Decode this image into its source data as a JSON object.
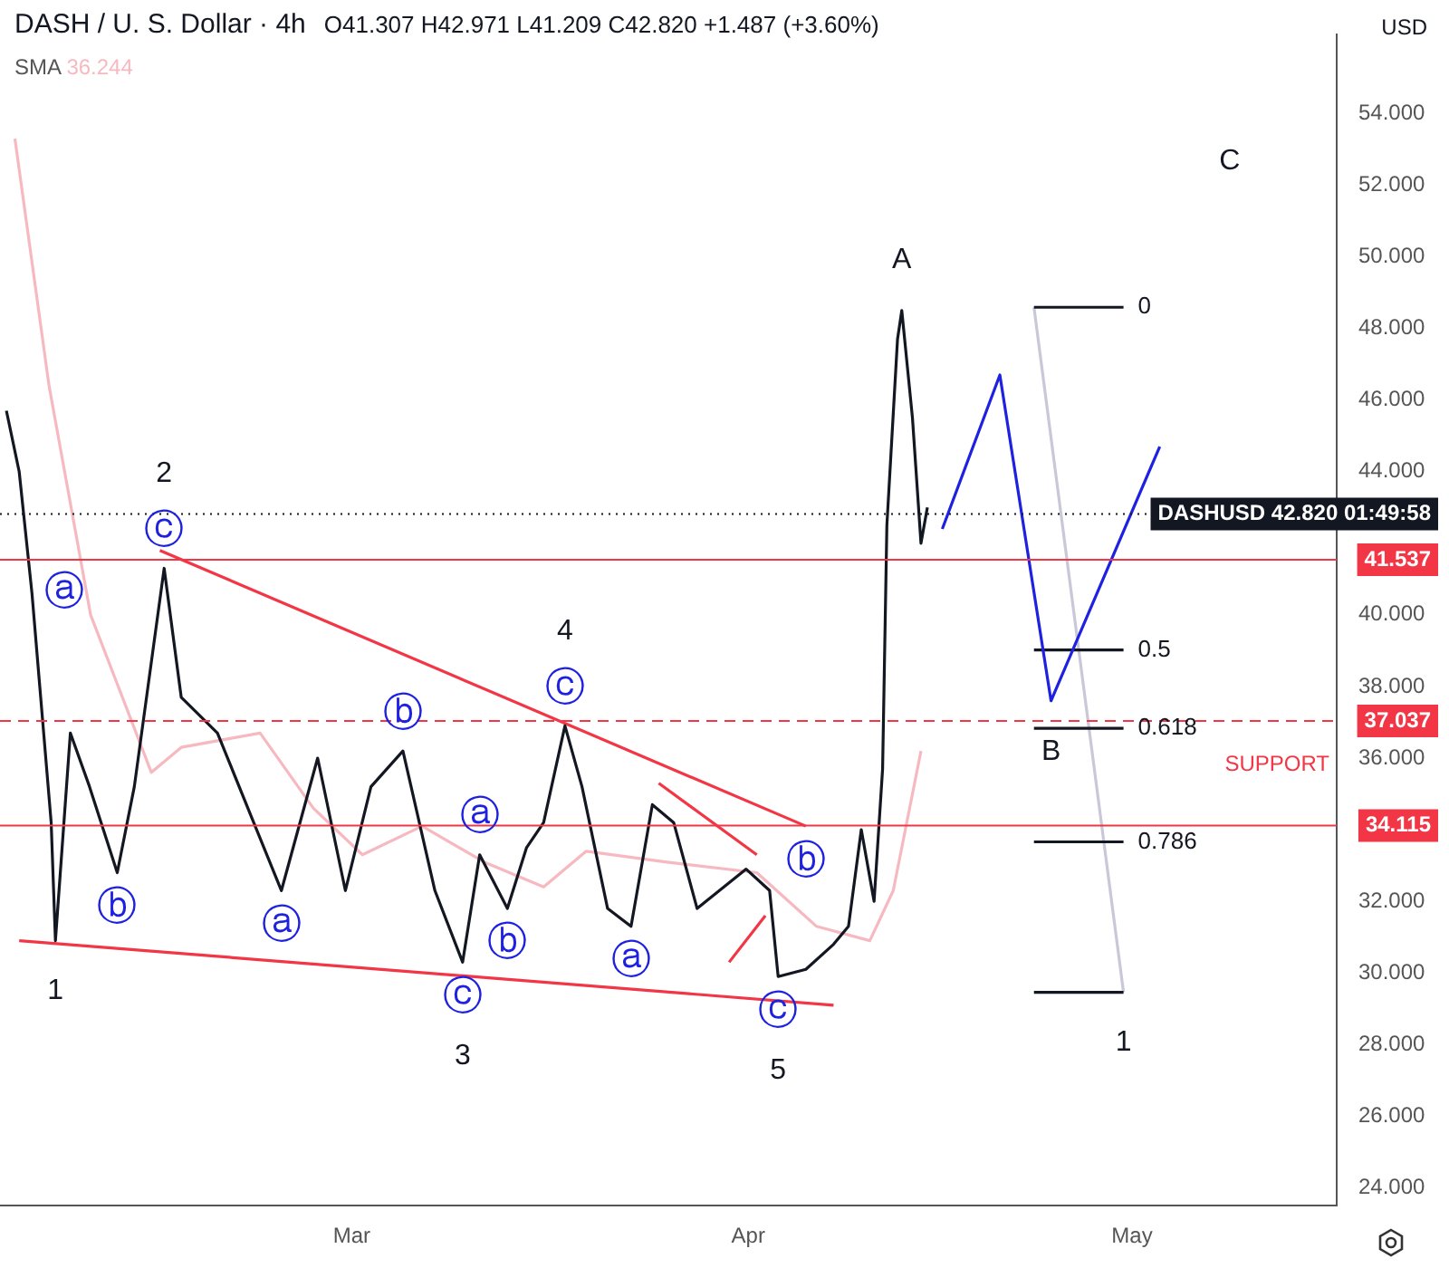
{
  "chart_data": {
    "type": "line",
    "title": "DASH / U. S. Dollar · 4h",
    "annotations": [
      "O41.307 H42.971 L41.209 C42.820 +1.487 (+3.60%)",
      "36.244",
      "USD",
      "C",
      {
        "text": "1",
        "x": "--02-06T20:00",
        "y": 30.9
      },
      {
        "text": "ⓒ",
        "x": "--02-15T08:00",
        "y": 41.3
      },
      {
        "text": "2",
        "x": "--02-15T08:00",
        "y": 41.3
      },
      {
        "text": "ⓒ",
        "x": "--03-09T16:00",
        "y": 30.3
      },
      {
        "text": "3",
        "x": "--03-09T16:00",
        "y": 30.3
      },
      {
        "text": "ⓒ",
        "x": "--03-17T16:00",
        "y": 36.9
      },
      {
        "text": "4",
        "x": "--03-17T16:00",
        "y": 36.9
      },
      {
        "text": "ⓒ",
        "x": "--04-03T08:00",
        "y": 29.9
      },
      {
        "text": "5",
        "x": "--04-03T08:00",
        "y": 29.9
      },
      {
        "text": "A",
        "x": "--04-13",
        "y": 48.5
      },
      {
        "text": "B",
        "x": "--04-24T16:00",
        "y": 37.6
      },
      {
        "text": "ⓐ",
        "x": "--02-05",
        "y": 40.6
      },
      {
        "text": "ⓑ",
        "x": "--02-11T16:00",
        "y": 32.8
      },
      {
        "text": "ⓐ",
        "x": "--02-24T12:00",
        "y": 32.3
      },
      {
        "text": "ⓑ",
        "x": "--03-05",
        "y": 36.2
      },
      {
        "text": "ⓐ",
        "x": "--03-11",
        "y": 33.3
      },
      {
        "text": "ⓑ",
        "x": "--03-13T04:00",
        "y": 31.8
      },
      {
        "text": "ⓐ",
        "x": "--03-22T20:00",
        "y": 31.3
      },
      {
        "text": "ⓑ",
        "x": "--04-05T12:00",
        "y": 34.1
      },
      {
        "text": "0",
        "x": "--04-30T08:00",
        "y": 48.59
      },
      {
        "text": "0.5",
        "x": "--04-30T08:00",
        "y": 39.02
      },
      {
        "text": "0.618",
        "x": "--04-30T08:00",
        "y": 36.83
      },
      {
        "text": "0.786",
        "x": "--04-30T08:00",
        "y": 33.66
      },
      {
        "text": "1",
        "x": "--04-30T08:00",
        "y": 29.46
      },
      {
        "text": "SUPPORT",
        "x": "--05-13T12:00",
        "y": 37.037
      }
    ],
    "series": [
      {
        "color": "#131722",
        "x": [
          "--02-03",
          "--02-04",
          "--02-05",
          "--02-06T12:00",
          "--02-06T20:00",
          "--02-08",
          "--02-09T12:00",
          "--02-11T16:00",
          "--02-13",
          "--02-15T08:00",
          "--02-16T16:00",
          "--02-19T12:00",
          "--02-22T08:00",
          "--02-24T12:00",
          "--02-27T08:00",
          "--02-29T12:00",
          "--03-02T12:00",
          "--03-05",
          "--03-07T12:00",
          "--03-09T16:00",
          "--03-11",
          "--03-13T04:00",
          "--03-14T16:00",
          "--03-16",
          "--03-17T16:00",
          "--03-19",
          "--03-21",
          "--03-22T20:00",
          "--03-24T12:00",
          "--03-26T04:00",
          "--03-28",
          "--03-31T20:00",
          "--04-02T16:00",
          "--04-03T08:00",
          "--04-05T12:00",
          "--04-07T16:00",
          "--04-08T20:00",
          "--04-09T20:00",
          "--04-10T20:00",
          "--04-11T12:00",
          "--04-11T20:00",
          "--04-12T16:00",
          "--04-13",
          "--04-13T20:00",
          "--04-14T12:00",
          "--04-15"
        ],
        "values": [
          45.7,
          44.0,
          40.6,
          34.2,
          30.9,
          36.7,
          35.2,
          32.8,
          35.2,
          41.3,
          37.7,
          36.7,
          34.2,
          32.3,
          36.0,
          32.3,
          35.2,
          36.2,
          32.3,
          30.3,
          33.3,
          31.8,
          33.5,
          34.2,
          36.9,
          35.2,
          31.8,
          31.3,
          34.7,
          34.2,
          31.8,
          32.9,
          32.3,
          29.9,
          30.1,
          30.8,
          31.3,
          34.0,
          32.0,
          35.7,
          42.5,
          47.7,
          48.5,
          45.5,
          42.0,
          43.0
        ]
      },
      {
        "name": "SMA",
        "color": "#f7b9c0",
        "x": [
          "--02-03T16:00",
          "--02-06T08:00",
          "--02-09T14:00",
          "--02-14T08:00",
          "--02-16T16:00",
          "--02-22T20:00",
          "--02-27",
          "--03-01T20:00",
          "--03-06T12:00",
          "--03-11T08:00",
          "--03-16",
          "--03-19T08:00",
          "--03-25T12:00",
          "--04-01T16:00",
          "--04-06T08:00",
          "--04-10T12:00",
          "--04-12T08:00",
          "--04-14T12:00"
        ],
        "values": [
          53.3,
          46.4,
          40.0,
          35.6,
          36.3,
          36.7,
          34.6,
          33.3,
          34.1,
          33.1,
          32.4,
          33.4,
          33.1,
          32.8,
          31.3,
          30.9,
          32.3,
          36.2
        ]
      },
      {
        "color": "#f23645",
        "x": [
          "--02-15",
          "--04-05T12:00"
        ],
        "values": [
          41.8,
          34.1
        ]
      },
      {
        "color": "#f23645",
        "x": [
          "--02-04",
          "--04-07T16:00"
        ],
        "values": [
          30.9,
          29.1
        ]
      },
      {
        "color": "#f23645",
        "x": [
          "--03-25",
          "--04-01T16:00"
        ],
        "values": [
          35.3,
          33.3
        ]
      },
      {
        "color": "#f23645",
        "x": [
          "--03-30T12:00",
          "--04-02T08:00"
        ],
        "values": [
          30.3,
          31.6
        ]
      },
      {
        "color": "#1e22e0",
        "x": [
          "--04-16T04:00",
          "--04-20T16:00",
          "--04-24T16:00",
          "--05-03T04:00"
        ],
        "values": [
          42.4,
          46.7,
          37.6,
          44.7
        ]
      },
      {
        "color": "#131722",
        "x": [
          "--04-23T08:00",
          "--04-30T08:00"
        ],
        "values": [
          48.59,
          48.59
        ]
      },
      {
        "color": "#131722",
        "x": [
          "--04-23T08:00",
          "--04-30T08:00"
        ],
        "values": [
          39.02,
          39.02
        ]
      },
      {
        "color": "#131722",
        "x": [
          "--04-23T08:00",
          "--04-30T08:00"
        ],
        "values": [
          36.83,
          36.83
        ]
      },
      {
        "color": "#131722",
        "x": [
          "--04-23T08:00",
          "--04-30T08:00"
        ],
        "values": [
          33.66,
          33.66
        ]
      },
      {
        "color": "#131722",
        "x": [
          "--04-23T08:00",
          "--04-30T08:00"
        ],
        "values": [
          29.46,
          29.46
        ]
      },
      {
        "color": "#c8c8d8",
        "x": [
          "--04-23T08:00",
          "--04-30T08:00"
        ],
        "values": [
          48.59,
          29.46
        ]
      }
    ],
    "ref_lines": [
      {
        "axis": "y",
        "value": 42.82,
        "label": "DASHUSD 42.820 01:49:58",
        "color": "#131722",
        "line_style": "dotted"
      },
      {
        "axis": "y",
        "value": 41.537,
        "label": "41.537",
        "color": "#f23645"
      },
      {
        "axis": "y",
        "value": 37.037,
        "label": "37.037",
        "color": "#f23645",
        "line_style": "dashed"
      },
      {
        "axis": "y",
        "value": 34.115,
        "label": "34.115",
        "color": "#f23645"
      }
    ],
    "xlim": [
      "--02-02T12:00",
      "--05-17"
    ],
    "xticks": [
      {
        "value": "--03-01",
        "label": "Mar"
      },
      {
        "value": "--04-01",
        "label": "Apr"
      },
      {
        "value": "--05-01",
        "label": "May"
      }
    ],
    "ylim": [
      23.5,
      56.2
    ],
    "yticks": [
      {
        "value": 24,
        "label": "24.000"
      },
      {
        "value": 26,
        "label": "26.000"
      },
      {
        "value": 28,
        "label": "28.000"
      },
      {
        "value": 30,
        "label": "30.000"
      },
      {
        "value": 32,
        "label": "32.000"
      },
      {
        "value": 36,
        "label": "36.000"
      },
      {
        "value": 38,
        "label": "38.000"
      },
      {
        "value": 40,
        "label": "40.000"
      },
      {
        "value": 44,
        "label": "44.000"
      },
      {
        "value": 46,
        "label": "46.000"
      },
      {
        "value": 48,
        "label": "48.000"
      },
      {
        "value": 50,
        "label": "50.000"
      },
      {
        "value": 52,
        "label": "52.000"
      },
      {
        "value": 54,
        "label": "54.000"
      }
    ],
    "legend": "top left"
  }
}
